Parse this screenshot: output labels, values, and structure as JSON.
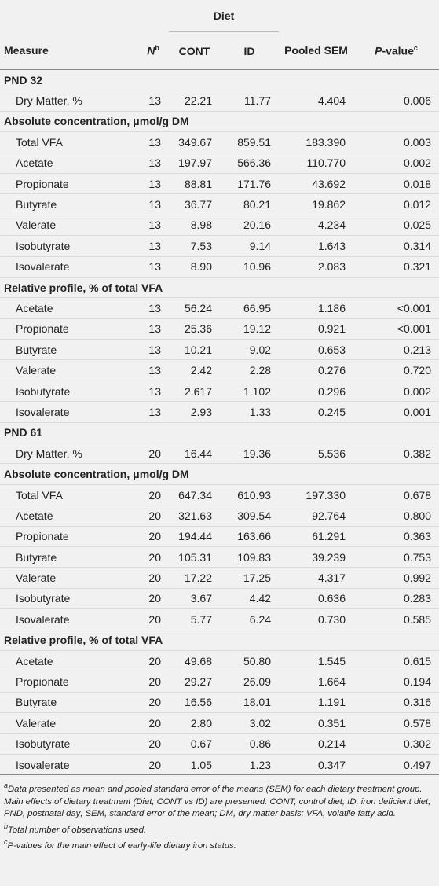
{
  "header": {
    "group": "Diet",
    "columns": [
      {
        "text": "Measure"
      },
      {
        "text": "N",
        "sup": "b"
      },
      {
        "text": "CONT"
      },
      {
        "text": "ID"
      },
      {
        "text": "Pooled SEM"
      },
      {
        "italic": "P",
        "text": "-value",
        "sup": "c"
      }
    ]
  },
  "table": {
    "rows": [
      {
        "section": "PND 32"
      },
      {
        "cells": [
          "Dry Matter, %",
          "13",
          "22.21",
          "11.77",
          "4.404",
          "0.006"
        ]
      },
      {
        "section": "Absolute concentration, μmol/g DM"
      },
      {
        "cells": [
          "Total VFA",
          "13",
          "349.67",
          "859.51",
          "183.390",
          "0.003"
        ]
      },
      {
        "cells": [
          "Acetate",
          "13",
          "197.97",
          "566.36",
          "110.770",
          "0.002"
        ]
      },
      {
        "cells": [
          "Propionate",
          "13",
          "88.81",
          "171.76",
          "43.692",
          "0.018"
        ]
      },
      {
        "cells": [
          "Butyrate",
          "13",
          "36.77",
          "80.21",
          "19.862",
          "0.012"
        ]
      },
      {
        "cells": [
          "Valerate",
          "13",
          "8.98",
          "20.16",
          "4.234",
          "0.025"
        ]
      },
      {
        "cells": [
          "Isobutyrate",
          "13",
          "7.53",
          "9.14",
          "1.643",
          "0.314"
        ]
      },
      {
        "cells": [
          "Isovalerate",
          "13",
          "8.90",
          "10.96",
          "2.083",
          "0.321"
        ]
      },
      {
        "section": "Relative profile, % of total VFA"
      },
      {
        "cells": [
          "Acetate",
          "13",
          "56.24",
          "66.95",
          "1.186",
          "<0.001"
        ]
      },
      {
        "cells": [
          "Propionate",
          "13",
          "25.36",
          "19.12",
          "0.921",
          "<0.001"
        ]
      },
      {
        "cells": [
          "Butyrate",
          "13",
          "10.21",
          "9.02",
          "0.653",
          "0.213"
        ]
      },
      {
        "cells": [
          "Valerate",
          "13",
          "2.42",
          "2.28",
          "0.276",
          "0.720"
        ]
      },
      {
        "cells": [
          "Isobutyrate",
          "13",
          "2.617",
          "1.102",
          "0.296",
          "0.002"
        ]
      },
      {
        "cells": [
          "Isovalerate",
          "13",
          "2.93",
          "1.33",
          "0.245",
          "0.001"
        ]
      },
      {
        "section": "PND 61"
      },
      {
        "cells": [
          "Dry Matter, %",
          "20",
          "16.44",
          "19.36",
          "5.536",
          "0.382"
        ]
      },
      {
        "section": "Absolute concentration, μmol/g DM"
      },
      {
        "cells": [
          "Total VFA",
          "20",
          "647.34",
          "610.93",
          "197.330",
          "0.678"
        ]
      },
      {
        "cells": [
          "Acetate",
          "20",
          "321.63",
          "309.54",
          "92.764",
          "0.800"
        ]
      },
      {
        "cells": [
          "Propionate",
          "20",
          "194.44",
          "163.66",
          "61.291",
          "0.363"
        ]
      },
      {
        "cells": [
          "Butyrate",
          "20",
          "105.31",
          "109.83",
          "39.239",
          "0.753"
        ]
      },
      {
        "cells": [
          "Valerate",
          "20",
          "17.22",
          "17.25",
          "4.317",
          "0.992"
        ]
      },
      {
        "cells": [
          "Isobutyrate",
          "20",
          "3.67",
          "4.42",
          "0.636",
          "0.283"
        ]
      },
      {
        "cells": [
          "Isovalerate",
          "20",
          "5.77",
          "6.24",
          "0.730",
          "0.585"
        ]
      },
      {
        "section": "Relative profile, % of total VFA"
      },
      {
        "cells": [
          "Acetate",
          "20",
          "49.68",
          "50.80",
          "1.545",
          "0.615"
        ]
      },
      {
        "cells": [
          "Propionate",
          "20",
          "29.27",
          "26.09",
          "1.664",
          "0.194"
        ]
      },
      {
        "cells": [
          "Butyrate",
          "20",
          "16.56",
          "18.01",
          "1.191",
          "0.316"
        ]
      },
      {
        "cells": [
          "Valerate",
          "20",
          "2.80",
          "3.02",
          "0.351",
          "0.578"
        ]
      },
      {
        "cells": [
          "Isobutyrate",
          "20",
          "0.67",
          "0.86",
          "0.214",
          "0.302"
        ]
      },
      {
        "cells": [
          "Isovalerate",
          "20",
          "1.05",
          "1.23",
          "0.347",
          "0.497"
        ]
      }
    ]
  },
  "footnotes": [
    {
      "mark": "a",
      "text": "Data presented as mean and pooled standard error of the means (SEM) for each dietary treatment group. Main effects of dietary treatment (Diet; CONT vs ID) are presented. CONT, control diet; ID, iron deficient diet; PND, postnatal day; SEM, standard error of the mean; DM, dry matter basis; VFA, volatile fatty acid."
    },
    {
      "mark": "b",
      "text": "Total number of observations used."
    },
    {
      "mark": "c",
      "text": "P-values for the main effect of early-life dietary iron status."
    }
  ]
}
